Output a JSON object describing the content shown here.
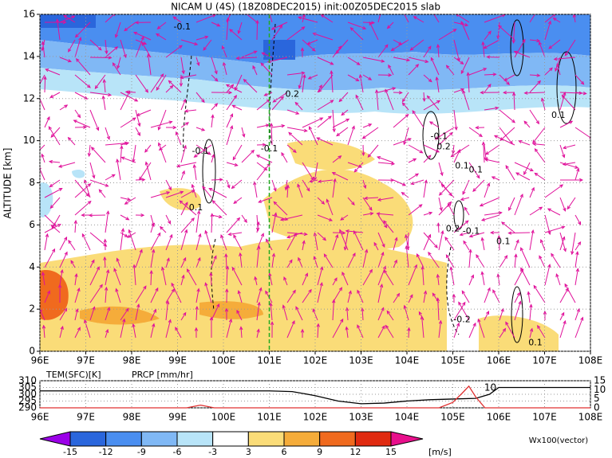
{
  "chart_data": [
    {
      "type": "cross-section",
      "title": "NICAM U (4S) (18Z08DEC2015) init:00Z05DEC2015 slab",
      "y_label": "ALTITUDE [km]",
      "xlim": [
        96,
        108
      ],
      "xticks": [
        {
          "value": 96,
          "label": "96E"
        },
        {
          "value": 97,
          "label": "97E"
        },
        {
          "value": 98,
          "label": "98E"
        },
        {
          "value": 99,
          "label": "99E"
        },
        {
          "value": 100,
          "label": "100E"
        },
        {
          "value": 101,
          "label": "101E"
        },
        {
          "value": 102,
          "label": "102E"
        },
        {
          "value": 103,
          "label": "103E"
        },
        {
          "value": 104,
          "label": "104E"
        },
        {
          "value": 105,
          "label": "105E"
        },
        {
          "value": 106,
          "label": "106E"
        },
        {
          "value": 107,
          "label": "107E"
        },
        {
          "value": 108,
          "label": "108E"
        }
      ],
      "ylim": [
        0,
        16
      ],
      "yticks": [
        0,
        2,
        4,
        6,
        8,
        10,
        12,
        14,
        16
      ],
      "grid": true,
      "reference_line_x": 101,
      "annotations": [
        "-0.1",
        "0.2",
        "-0.1",
        "-0.1",
        "0.1",
        "0.1",
        "-0.1",
        "0.1",
        "0.2",
        "0.1",
        "0.1",
        "-0.1",
        "0.2",
        "-0.2",
        "0.1"
      ]
    },
    {
      "type": "line",
      "legend": [
        "TEM(SFC)[K]",
        "PRCP [mm/hr]"
      ],
      "xlim": [
        96,
        108
      ],
      "xticks": [
        {
          "value": 96,
          "label": "96E"
        },
        {
          "value": 97,
          "label": "97E"
        },
        {
          "value": 98,
          "label": "98E"
        },
        {
          "value": 99,
          "label": "99E"
        },
        {
          "value": 100,
          "label": "100E"
        },
        {
          "value": 101,
          "label": "101E"
        },
        {
          "value": 102,
          "label": "102E"
        },
        {
          "value": 103,
          "label": "103E"
        },
        {
          "value": 104,
          "label": "104E"
        },
        {
          "value": 105,
          "label": "105E"
        },
        {
          "value": 106,
          "label": "106E"
        },
        {
          "value": 107,
          "label": "107E"
        },
        {
          "value": 108,
          "label": "108E"
        }
      ],
      "ylim": [
        290,
        310
      ],
      "yticks": [
        290,
        295,
        300,
        305,
        310
      ],
      "y2lim": [
        0,
        15
      ],
      "y2ticks": [
        0,
        5,
        10,
        15
      ],
      "annotation": "10",
      "series": [
        {
          "name": "TEM(SFC)[K]",
          "color": "#000000",
          "axis": "y",
          "x": [
            96,
            97,
            98,
            99,
            100,
            101,
            101.5,
            102,
            102.5,
            103,
            103.5,
            104,
            104.5,
            105,
            105.5,
            105.8,
            106,
            107,
            108
          ],
          "values": [
            302.5,
            302.5,
            302.5,
            302.5,
            302.5,
            302.5,
            302,
            299,
            295,
            293,
            293.5,
            295,
            296,
            296.5,
            297,
            300,
            305,
            305,
            305
          ]
        },
        {
          "name": "PRCP [mm/hr]",
          "color": "#e03030",
          "axis": "y2",
          "x": [
            96,
            99.2,
            99.5,
            99.8,
            104.7,
            105,
            105.2,
            105.35,
            105.5,
            105.7,
            108
          ],
          "values": [
            0,
            0,
            1.5,
            0,
            0,
            3,
            8,
            12,
            6,
            0,
            0
          ]
        }
      ]
    },
    {
      "type": "colorbar",
      "levels": [
        -15,
        -12,
        -9,
        -6,
        -3,
        3,
        6,
        9,
        12,
        15
      ],
      "colors": [
        "#9b00e8",
        "#2a66dc",
        "#4a8ef0",
        "#80b8f5",
        "#b8e4f8",
        "#ffffff",
        "#fadc78",
        "#f5ac3a",
        "#f06a1e",
        "#e02a10",
        "#b00018",
        "#e8108c"
      ],
      "unit_label": "[m/s]",
      "vector_label": "Wx100(vector)"
    }
  ]
}
